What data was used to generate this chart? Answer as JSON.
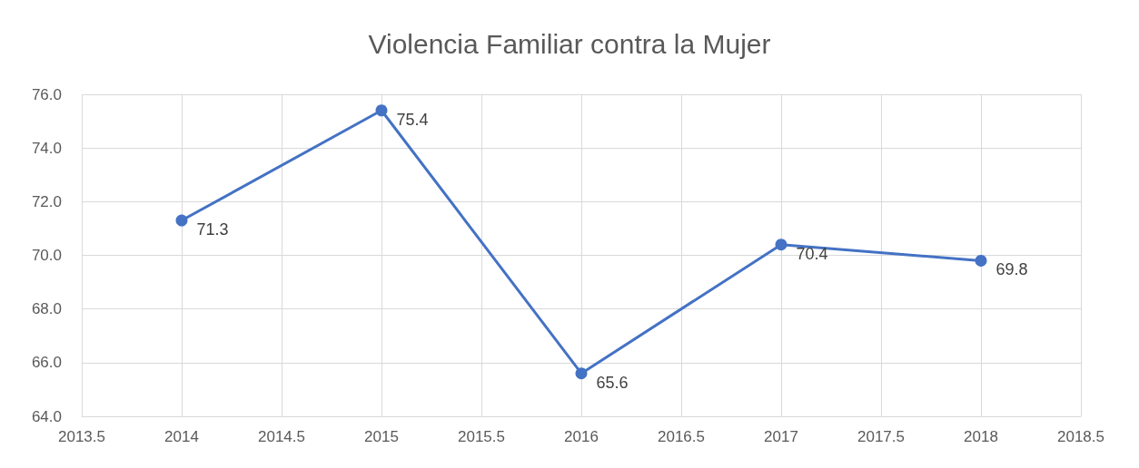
{
  "chart_data": {
    "type": "line",
    "title": "Violencia Familiar contra la Mujer",
    "x": [
      2014,
      2015,
      2016,
      2017,
      2018
    ],
    "series": [
      {
        "color": "#4472c4",
        "values": [
          71.3,
          75.4,
          65.6,
          70.4,
          69.8
        ]
      }
    ],
    "xlim": [
      2013.5,
      2018.5
    ],
    "xticks": [
      2013.5,
      2014,
      2014.5,
      2015,
      2015.5,
      2016,
      2016.5,
      2017,
      2017.5,
      2018,
      2018.5
    ],
    "ylim": [
      64,
      76
    ],
    "yticks": [
      {
        "value": 64,
        "label": "64.0"
      },
      {
        "value": 66,
        "label": "66.0"
      },
      {
        "value": 68,
        "label": "68.0"
      },
      {
        "value": 70,
        "label": "70.0"
      },
      {
        "value": 72,
        "label": "72.0"
      },
      {
        "value": 74,
        "label": "74.0"
      },
      {
        "value": 76,
        "label": "76.0"
      }
    ],
    "grid": true,
    "marker": "circle",
    "line_style": "solid",
    "data_labels": true
  }
}
